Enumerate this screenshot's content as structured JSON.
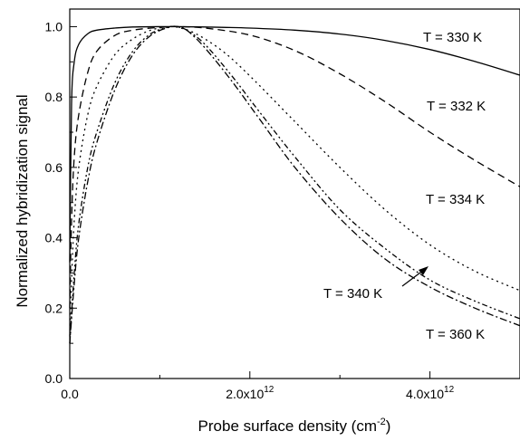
{
  "chart_data": {
    "type": "line",
    "xlabel": "Probe surface density (cm",
    "xlabel_sup": "-2",
    "xlabel_close": ")",
    "ylabel": "Normalized hybridization signal",
    "xlim": [
      0,
      5000000000000.0
    ],
    "ylim": [
      0,
      1.05
    ],
    "x_ticks": [
      {
        "value": 0,
        "label": "0.0",
        "exp": ""
      },
      {
        "value": 2000000000000.0,
        "label": "2.0x10",
        "exp": "12"
      },
      {
        "value": 4000000000000.0,
        "label": "4.0x10",
        "exp": "12"
      }
    ],
    "y_ticks": [
      {
        "value": 0.0,
        "label": "0.0"
      },
      {
        "value": 0.2,
        "label": "0.2"
      },
      {
        "value": 0.4,
        "label": "0.4"
      },
      {
        "value": 0.6,
        "label": "0.6"
      },
      {
        "value": 0.8,
        "label": "0.8"
      },
      {
        "value": 1.0,
        "label": "1.0"
      }
    ],
    "series": [
      {
        "id": "330",
        "dash": "",
        "x": [
          0,
          20000000000.0,
          50000000000.0,
          100000000000.0,
          200000000000.0,
          300000000000.0,
          500000000000.0,
          700000000000.0,
          1000000000000.0,
          1200000000000.0,
          1500000000000.0,
          2000000000000.0,
          2500000000000.0,
          3000000000000.0,
          3500000000000.0,
          4000000000000.0,
          4500000000000.0,
          5000000000000.0
        ],
        "y": [
          0.33,
          0.78,
          0.9,
          0.95,
          0.98,
          0.99,
          0.996,
          0.999,
          1.0,
          1.0,
          0.999,
          0.996,
          0.99,
          0.979,
          0.961,
          0.935,
          0.901,
          0.862
        ]
      },
      {
        "id": "332",
        "dash": "8,5",
        "x": [
          0,
          20000000000.0,
          50000000000.0,
          100000000000.0,
          200000000000.0,
          300000000000.0,
          500000000000.0,
          700000000000.0,
          1000000000000.0,
          1200000000000.0,
          1500000000000.0,
          2000000000000.0,
          2500000000000.0,
          3000000000000.0,
          3500000000000.0,
          4000000000000.0,
          4500000000000.0,
          5000000000000.0
        ],
        "y": [
          0.2,
          0.45,
          0.63,
          0.75,
          0.87,
          0.93,
          0.975,
          0.99,
          0.998,
          1.0,
          0.996,
          0.976,
          0.932,
          0.866,
          0.787,
          0.7,
          0.62,
          0.545
        ]
      },
      {
        "id": "334",
        "dash": "2,4",
        "x": [
          0,
          20000000000.0,
          50000000000.0,
          100000000000.0,
          200000000000.0,
          300000000000.0,
          500000000000.0,
          700000000000.0,
          900000000000.0,
          1100000000000.0,
          1200000000000.0,
          1400000000000.0,
          1700000000000.0,
          2000000000000.0,
          2500000000000.0,
          3000000000000.0,
          3500000000000.0,
          4000000000000.0,
          4500000000000.0,
          5000000000000.0
        ],
        "y": [
          0.12,
          0.28,
          0.45,
          0.6,
          0.75,
          0.83,
          0.92,
          0.965,
          0.99,
          1.0,
          0.998,
          0.98,
          0.93,
          0.86,
          0.73,
          0.6,
          0.48,
          0.38,
          0.305,
          0.25
        ]
      },
      {
        "id": "340",
        "dash": "6,3,2,3,2,3",
        "x": [
          0,
          50000000000.0,
          100000000000.0,
          200000000000.0,
          300000000000.0,
          500000000000.0,
          700000000000.0,
          900000000000.0,
          1100000000000.0,
          1180000000000.0,
          1300000000000.0,
          1500000000000.0,
          1800000000000.0,
          2100000000000.0,
          2500000000000.0,
          3000000000000.0,
          3500000000000.0,
          4000000000000.0,
          4500000000000.0,
          5000000000000.0
        ],
        "y": [
          0.1,
          0.3,
          0.44,
          0.6,
          0.7,
          0.84,
          0.93,
          0.98,
          0.999,
          1.0,
          0.99,
          0.95,
          0.86,
          0.76,
          0.63,
          0.48,
          0.37,
          0.28,
          0.22,
          0.17
        ]
      },
      {
        "id": "360",
        "dash": "8,3,2,3",
        "x": [
          0,
          50000000000.0,
          100000000000.0,
          200000000000.0,
          300000000000.0,
          500000000000.0,
          700000000000.0,
          900000000000.0,
          1100000000000.0,
          1200000000000.0,
          1300000000000.0,
          1500000000000.0,
          1800000000000.0,
          2100000000000.0,
          2500000000000.0,
          3000000000000.0,
          3500000000000.0,
          4000000000000.0,
          4500000000000.0,
          5000000000000.0
        ],
        "y": [
          0.1,
          0.27,
          0.4,
          0.56,
          0.67,
          0.82,
          0.92,
          0.975,
          0.998,
          1.0,
          0.99,
          0.94,
          0.845,
          0.74,
          0.6,
          0.455,
          0.34,
          0.26,
          0.2,
          0.15
        ]
      }
    ],
    "annotations": [
      {
        "text": "T = 330 K"
      },
      {
        "text": "T = 332 K"
      },
      {
        "text": "T = 334 K"
      },
      {
        "text": "T = 340 K"
      },
      {
        "text": "T = 360 K"
      }
    ]
  }
}
